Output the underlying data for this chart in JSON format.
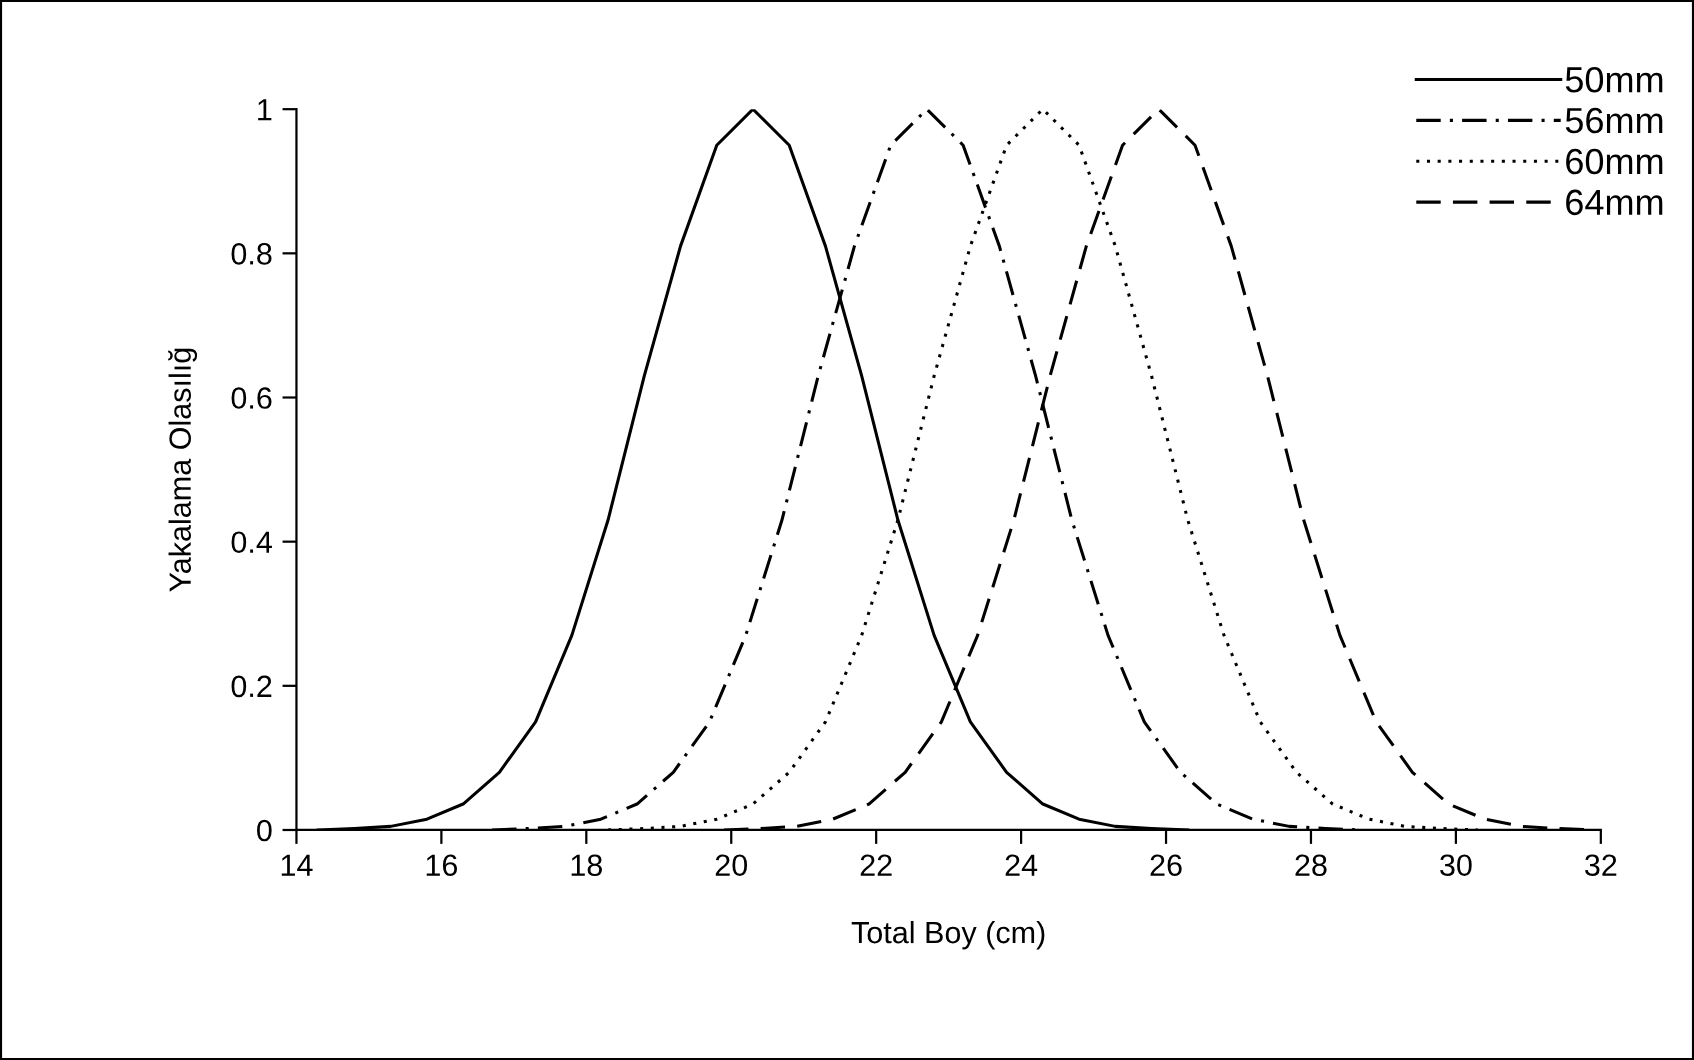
{
  "chart_data": {
    "type": "line",
    "xlabel": "Total Boy (cm)",
    "ylabel": "Yakalama Olasılığ",
    "xlim": [
      14,
      32
    ],
    "ylim": [
      0,
      1
    ],
    "xticks": [
      14,
      16,
      18,
      20,
      22,
      24,
      26,
      28,
      30,
      32
    ],
    "yticks": [
      0,
      0.2,
      0.4,
      0.6,
      0.8,
      1
    ],
    "grid": false,
    "legend": "top right",
    "marker": "none",
    "series": [
      {
        "name": "50mm",
        "color": "#000000",
        "line_style": "solid",
        "x": [
          14.3,
          14.8,
          15.3,
          15.8,
          16.3,
          16.8,
          17.3,
          17.8,
          18.3,
          18.8,
          19.3,
          19.8,
          20.3,
          20.8,
          21.3,
          21.8,
          22.3,
          22.8,
          23.3,
          23.8,
          24.3,
          24.8,
          25.3,
          25.8,
          26.3
        ],
        "values": [
          0,
          0.002,
          0.005,
          0.015,
          0.036,
          0.08,
          0.15,
          0.27,
          0.43,
          0.63,
          0.81,
          0.95,
          1,
          0.95,
          0.81,
          0.63,
          0.43,
          0.27,
          0.15,
          0.08,
          0.036,
          0.015,
          0.005,
          0.002,
          0
        ]
      },
      {
        "name": "56mm",
        "color": "#000000",
        "line_style": "dashdot",
        "x": [
          16.7,
          17.2,
          17.7,
          18.2,
          18.7,
          19.2,
          19.7,
          20.2,
          20.7,
          21.2,
          21.7,
          22.2,
          22.7,
          23.2,
          23.7,
          24.2,
          24.7,
          25.2,
          25.7,
          26.2,
          26.7,
          27.2,
          27.7,
          28.2,
          28.7
        ],
        "values": [
          0,
          0.002,
          0.005,
          0.015,
          0.036,
          0.08,
          0.15,
          0.27,
          0.43,
          0.63,
          0.81,
          0.95,
          1,
          0.95,
          0.81,
          0.63,
          0.43,
          0.27,
          0.15,
          0.08,
          0.036,
          0.015,
          0.005,
          0.002,
          0
        ]
      },
      {
        "name": "60mm",
        "color": "#000000",
        "line_style": "dotted",
        "x": [
          18.3,
          18.8,
          19.3,
          19.8,
          20.3,
          20.8,
          21.3,
          21.8,
          22.3,
          22.8,
          23.3,
          23.8,
          24.3,
          24.8,
          25.3,
          25.8,
          26.3,
          26.8,
          27.3,
          27.8,
          28.3,
          28.8,
          29.3,
          29.8,
          30.3
        ],
        "values": [
          0,
          0.002,
          0.005,
          0.015,
          0.036,
          0.08,
          0.15,
          0.27,
          0.43,
          0.63,
          0.81,
          0.95,
          1,
          0.95,
          0.81,
          0.63,
          0.43,
          0.27,
          0.15,
          0.08,
          0.036,
          0.015,
          0.005,
          0.002,
          0
        ]
      },
      {
        "name": "64mm",
        "color": "#000000",
        "line_style": "dashed",
        "x": [
          19.9,
          20.4,
          20.9,
          21.4,
          21.9,
          22.4,
          22.9,
          23.4,
          23.9,
          24.4,
          24.9,
          25.4,
          25.9,
          26.4,
          26.9,
          27.4,
          27.9,
          28.4,
          28.9,
          29.4,
          29.9,
          30.4,
          30.9,
          31.4,
          31.9
        ],
        "values": [
          0,
          0.002,
          0.005,
          0.015,
          0.036,
          0.08,
          0.15,
          0.27,
          0.43,
          0.63,
          0.81,
          0.95,
          1,
          0.95,
          0.81,
          0.63,
          0.43,
          0.27,
          0.15,
          0.08,
          0.036,
          0.015,
          0.005,
          0.002,
          0
        ]
      }
    ]
  }
}
